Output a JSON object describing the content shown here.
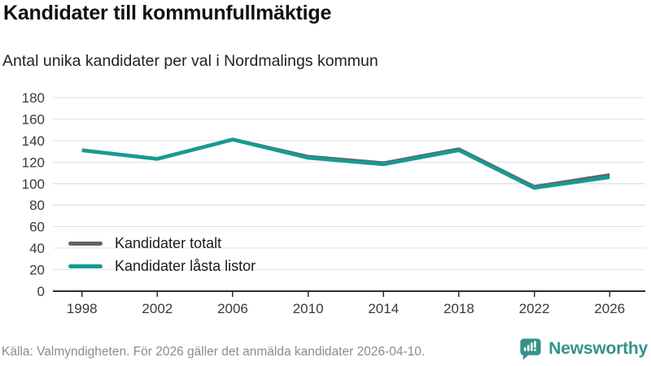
{
  "header": {
    "title": "Kandidater till kommunfullmäktige",
    "subtitle": "Antal unika kandidater per val i Nordmalings kommun"
  },
  "legend": [
    {
      "label": "Kandidater totalt",
      "color": "#63626a"
    },
    {
      "label": "Kandidater låsta listor",
      "color": "#169b90"
    }
  ],
  "footer": {
    "source": "Källa: Valmyndigheten. För 2026 gäller det anmälda kandidater 2026-04-10."
  },
  "logo": {
    "text": "Newsworthy",
    "icon": "newsworthy-speech-bubble-chart-icon",
    "color": "#33938b"
  },
  "chart_data": {
    "type": "line",
    "title": "Kandidater till kommunfullmäktige",
    "subtitle": "Antal unika kandidater per val i Nordmalings kommun",
    "x": [
      1998,
      2002,
      2006,
      2010,
      2014,
      2018,
      2022,
      2026
    ],
    "series": [
      {
        "name": "Kandidater totalt",
        "color": "#63626a",
        "values": [
          131,
          123,
          141,
          125,
          119,
          132,
          97,
          108
        ]
      },
      {
        "name": "Kandidater låsta listor",
        "color": "#169b90",
        "values": [
          131,
          123,
          141,
          124,
          118,
          131,
          96,
          106
        ]
      }
    ],
    "xlabel": "",
    "ylabel": "",
    "ylim": [
      0,
      180
    ],
    "yticks": [
      0,
      20,
      40,
      60,
      80,
      100,
      120,
      140,
      160,
      180
    ],
    "grid": true,
    "grid_color": "#e3e3e3",
    "axis_color": "#2f2f2f",
    "tick_label_color": "#3a3a3a",
    "legend_position": "inside-bottom-left"
  }
}
